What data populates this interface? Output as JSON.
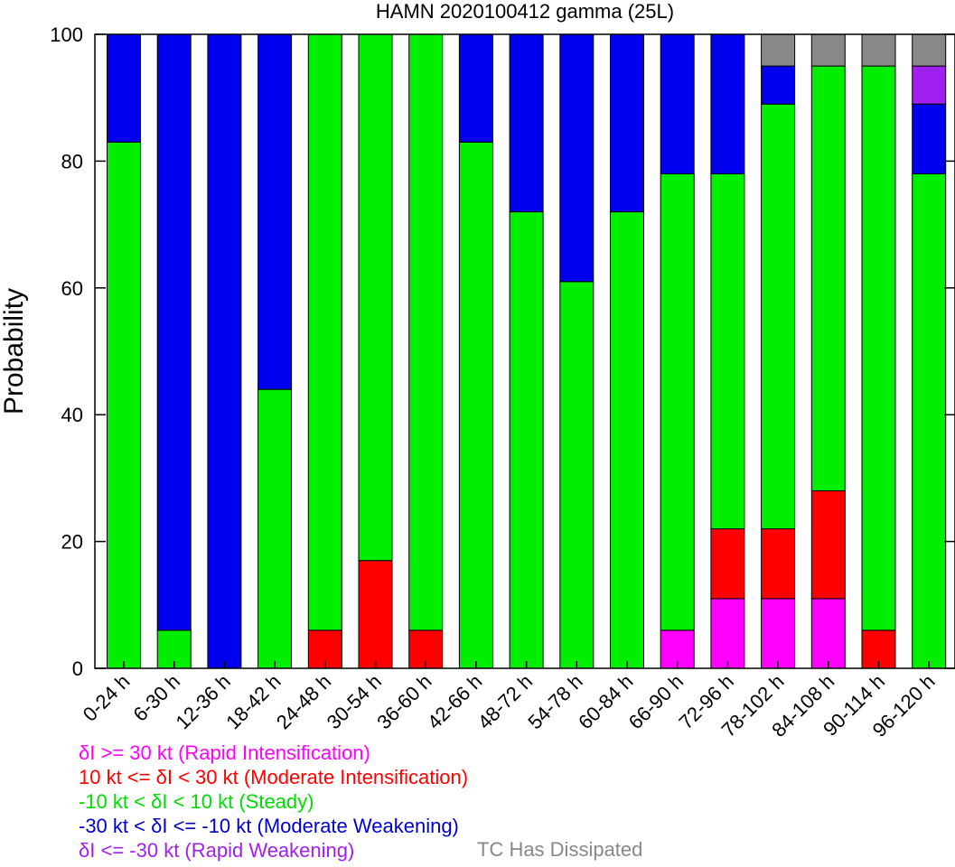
{
  "chart_data": {
    "type": "bar",
    "stacked": true,
    "title": "HAMN 2020100412 gamma (25L)",
    "ylabel": "Probability",
    "xlabel": "",
    "ylim": [
      0,
      100
    ],
    "yticks": [
      "0",
      "20",
      "40",
      "60",
      "80",
      "100"
    ],
    "grid": false,
    "categories": [
      "0-24 h",
      "6-30 h",
      "12-36 h",
      "18-42 h",
      "24-48 h",
      "30-54 h",
      "36-60 h",
      "42-66 h",
      "48-72 h",
      "54-78 h",
      "60-84 h",
      "66-90 h",
      "72-96 h",
      "78-102 h",
      "84-108 h",
      "90-114 h",
      "96-120 h"
    ],
    "series": [
      {
        "name": "Rapid Intensification",
        "color": "#ff00ff",
        "values": [
          0,
          0,
          0,
          0,
          0,
          0,
          0,
          0,
          0,
          0,
          0,
          6,
          11,
          11,
          11,
          0,
          0
        ]
      },
      {
        "name": "Moderate Intensification",
        "color": "#ff0000",
        "values": [
          0,
          0,
          0,
          0,
          6,
          17,
          6,
          0,
          0,
          0,
          0,
          0,
          11,
          11,
          17,
          6,
          0
        ]
      },
      {
        "name": "Steady",
        "color": "#00ee00",
        "values": [
          83,
          6,
          0,
          44,
          94,
          83,
          94,
          83,
          72,
          61,
          72,
          72,
          56,
          67,
          67,
          89,
          78
        ]
      },
      {
        "name": "Moderate Weakening",
        "color": "#0000ee",
        "values": [
          17,
          94,
          100,
          56,
          0,
          0,
          0,
          17,
          28,
          39,
          28,
          22,
          22,
          6,
          0,
          0,
          11
        ]
      },
      {
        "name": "Rapid Weakening",
        "color": "#a020f0",
        "values": [
          0,
          0,
          0,
          0,
          0,
          0,
          0,
          0,
          0,
          0,
          0,
          0,
          0,
          0,
          0,
          0,
          6
        ]
      },
      {
        "name": "TC Has Dissipated",
        "color": "#888888",
        "values": [
          0,
          0,
          0,
          0,
          0,
          0,
          0,
          0,
          0,
          0,
          0,
          0,
          0,
          5,
          5,
          5,
          5
        ]
      }
    ]
  },
  "legend": {
    "lines": [
      {
        "text": "δI >= 30 kt (Rapid Intensification)",
        "color": "#ff00ff"
      },
      {
        "text": "10 kt <= δI < 30 kt (Moderate Intensification)",
        "color": "#ff0000"
      },
      {
        "text": "-10 kt < δI < 10 kt (Steady)",
        "color": "#00dd00"
      },
      {
        "text": "-30 kt < δI <= -10 kt (Moderate Weakening)",
        "color": "#0000cc"
      },
      {
        "text": "δI <= -30 kt (Rapid Weakening)",
        "color": "#a020f0"
      }
    ],
    "dissipated": {
      "text": "TC Has Dissipated",
      "color": "#888888"
    }
  }
}
